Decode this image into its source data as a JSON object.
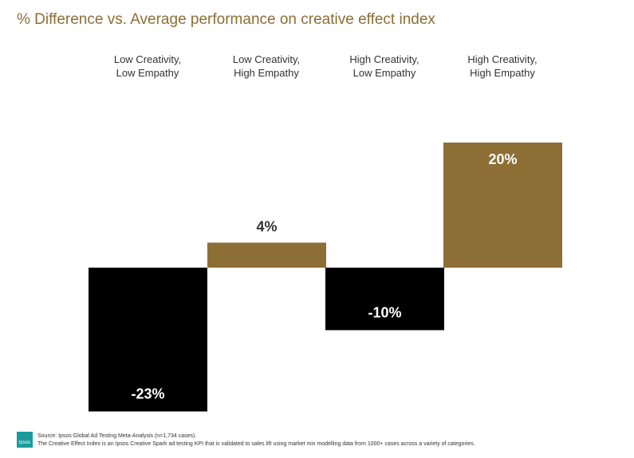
{
  "title": "% Difference vs. Average performance on creative effect index",
  "categories": [
    {
      "line1": "Low Creativity,",
      "line2": "Low Empathy"
    },
    {
      "line1": "Low Creativity,",
      "line2": "High Empathy"
    },
    {
      "line1": "High Creativity,",
      "line2": "Low Empathy"
    },
    {
      "line1": "High Creativity,",
      "line2": "High Empathy"
    }
  ],
  "chart_data": {
    "type": "bar",
    "categories": [
      "Low Creativity, Low Empathy",
      "Low Creativity, High Empathy",
      "High Creativity, Low Empathy",
      "High Creativity, High Empathy"
    ],
    "values": [
      -23,
      4,
      -10,
      20
    ],
    "value_labels": [
      "-23%",
      "4%",
      "-10%",
      "20%"
    ],
    "unit": "%",
    "colors": [
      "#000000",
      "#8d6e34",
      "#000000",
      "#8d6e34"
    ],
    "positive_color": "#8d6e34",
    "negative_color": "#000000",
    "grid": false,
    "legend": "none"
  },
  "footer": {
    "logo_text": "Ipsos",
    "source": "Source: Ipsos Global Ad Testing Meta-Analysis (n=1,734 cases).",
    "note": "The Creative Effect Index is an Ipsos Creative Spark ad testing KPI that is validated to sales lift using market mix modelling data from 1000+ cases across a variety of categories."
  },
  "colors": {
    "title": "#8d6e34",
    "text": "#333333",
    "logo": "#1b9a9a"
  }
}
